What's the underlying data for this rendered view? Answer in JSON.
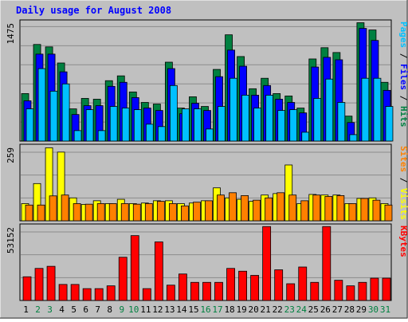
{
  "colors": {
    "background": "#c0c0c0",
    "plot_background": "#c0c0c0",
    "grid": "#8c8c8c",
    "title": "#0000ff",
    "hits": "#008040",
    "files": "#0000ff",
    "pages": "#00c0ff",
    "visits": "#ffff00",
    "sites": "#ff8000",
    "kbytes": "#ff0000",
    "day_weekday": "#000000",
    "day_weekend": "#008040"
  },
  "chart_data": {
    "type": "bar",
    "title": "Daily usage for August 2008",
    "categories": [
      "1",
      "2",
      "3",
      "4",
      "5",
      "6",
      "7",
      "8",
      "9",
      "10",
      "11",
      "12",
      "13",
      "14",
      "15",
      "16",
      "17",
      "18",
      "19",
      "20",
      "21",
      "22",
      "23",
      "24",
      "25",
      "26",
      "27",
      "28",
      "29",
      "30",
      "31"
    ],
    "weekend_days": [
      "2",
      "3",
      "9",
      "10",
      "16",
      "17",
      "23",
      "24",
      "30",
      "31"
    ],
    "panels": [
      {
        "id": "hits-files-pages",
        "ymax": 1475,
        "ymax_label": "1475",
        "legend": [
          {
            "text": "Pages",
            "color_key": "pages"
          },
          {
            "text": " / ",
            "color_key": "day_weekday"
          },
          {
            "text": "Files",
            "color_key": "files"
          },
          {
            "text": " / ",
            "color_key": "day_weekday"
          },
          {
            "text": "Hits",
            "color_key": "hits"
          }
        ],
        "series": [
          {
            "name": "Hits",
            "color_key": "hits",
            "values": [
              590,
              1200,
              1170,
              970,
              400,
              530,
              520,
              750,
              810,
              610,
              480,
              460,
              980,
              410,
              550,
              430,
              890,
              1320,
              1050,
              650,
              780,
              590,
              560,
              410,
              1020,
              1160,
              1100,
              310,
              1470,
              1380,
              730
            ]
          },
          {
            "name": "Files",
            "color_key": "files",
            "values": [
              500,
              1080,
              1080,
              860,
              330,
              440,
              440,
              680,
              730,
              540,
              410,
              380,
              900,
              340,
              470,
              380,
              800,
              1130,
              930,
              570,
              690,
              520,
              480,
              350,
              920,
              1040,
              1010,
              230,
              1400,
              1250,
              630
            ]
          },
          {
            "name": "Pages",
            "color_key": "pages",
            "values": [
              400,
              900,
              620,
              710,
              130,
              390,
              130,
              430,
              410,
              390,
              210,
              180,
              690,
              400,
              400,
              150,
              430,
              780,
              570,
              410,
              570,
              380,
              390,
              110,
              530,
              770,
              480,
              80,
              780,
              780,
              430
            ]
          }
        ]
      },
      {
        "id": "visits-sites",
        "ymax": 259,
        "ymax_label": "259",
        "legend": [
          {
            "text": "Sites",
            "color_key": "sites"
          },
          {
            "text": " / ",
            "color_key": "day_weekday"
          },
          {
            "text": "Visits",
            "color_key": "visits"
          }
        ],
        "series": [
          {
            "name": "Visits",
            "color_key": "visits",
            "values": [
              60,
              130,
              255,
              240,
              80,
              57,
              70,
              60,
              75,
              60,
              62,
              70,
              70,
              60,
              62,
              70,
              115,
              80,
              75,
              68,
              90,
              95,
              195,
              60,
              92,
              90,
              90,
              60,
              78,
              80,
              60
            ]
          },
          {
            "name": "Sites",
            "color_key": "sites",
            "values": [
              55,
              55,
              87,
              90,
              60,
              58,
              60,
              60,
              60,
              58,
              60,
              68,
              60,
              52,
              65,
              70,
              90,
              98,
              88,
              72,
              80,
              98,
              90,
              70,
              90,
              85,
              88,
              60,
              78,
              72,
              55
            ]
          }
        ]
      },
      {
        "id": "kbytes",
        "ymax": 53152,
        "ymax_label": "53152",
        "legend": [
          {
            "text": "KBytes",
            "color_key": "kbytes"
          }
        ],
        "series": [
          {
            "name": "KBytes",
            "color_key": "kbytes",
            "values": [
              17000,
              23000,
              24500,
              11500,
              11500,
              8500,
              8500,
              10500,
              31000,
              46500,
              8500,
              42000,
              11000,
              19000,
              13000,
              13000,
              13000,
              23000,
              21000,
              18000,
              53000,
              22000,
              12000,
              24000,
              13000,
              53000,
              14500,
              10500,
              13000,
              16000,
              16000
            ]
          }
        ]
      }
    ]
  }
}
